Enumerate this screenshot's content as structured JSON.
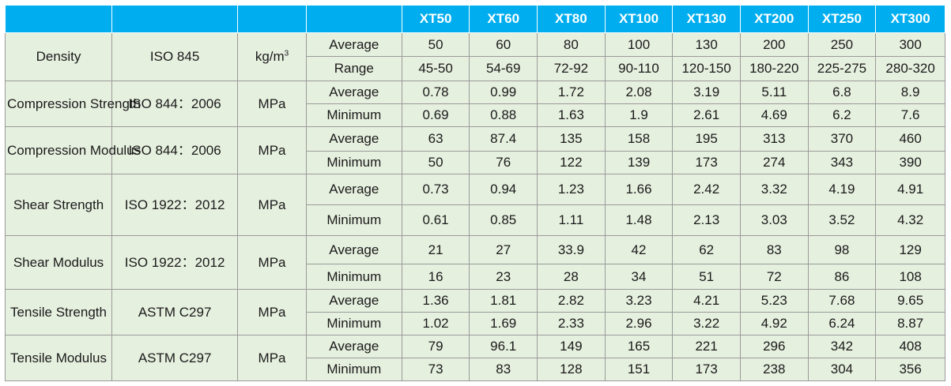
{
  "header": {
    "blank_cols": [
      "",
      "",
      "",
      ""
    ],
    "grades": [
      "XT50",
      "XT60",
      "XT80",
      "XT100",
      "XT130",
      "XT200",
      "XT250",
      "XT300"
    ]
  },
  "properties": [
    {
      "name": "Density",
      "standard": "ISO 845",
      "unit_base": "kg/m",
      "unit_sup": "3",
      "rows": [
        {
          "stat": "Average",
          "values": [
            "50",
            "60",
            "80",
            "100",
            "130",
            "200",
            "250",
            "300"
          ]
        },
        {
          "stat": "Range",
          "values": [
            "45-50",
            "54-69",
            "72-92",
            "90-110",
            "120-150",
            "180-220",
            "225-275",
            "280-320"
          ]
        }
      ]
    },
    {
      "name": "Compression Strength",
      "standard": "ISO 844：2006",
      "unit": "MPa",
      "rows": [
        {
          "stat": "Average",
          "values": [
            "0.78",
            "0.99",
            "1.72",
            "2.08",
            "3.19",
            "5.11",
            "6.8",
            "8.9"
          ]
        },
        {
          "stat": "Minimum",
          "values": [
            "0.69",
            "0.88",
            "1.63",
            "1.9",
            "2.61",
            "4.69",
            "6.2",
            "7.6"
          ]
        }
      ]
    },
    {
      "name": "Compression Modulus",
      "standard": "ISO 844：2006",
      "unit": "MPa",
      "rows": [
        {
          "stat": "Average",
          "values": [
            "63",
            "87.4",
            "135",
            "158",
            "195",
            "313",
            "370",
            "460"
          ]
        },
        {
          "stat": "Minimum",
          "values": [
            "50",
            "76",
            "122",
            "139",
            "173",
            "274",
            "343",
            "390"
          ]
        }
      ]
    },
    {
      "name": "Shear Strength",
      "standard": "ISO 1922：2012",
      "unit": "MPa",
      "rows": [
        {
          "stat": "Average",
          "values": [
            "0.73",
            "0.94",
            "1.23",
            "1.66",
            "2.42",
            "3.32",
            "4.19",
            "4.91"
          ]
        },
        {
          "stat": "Minimum",
          "values": [
            "0.61",
            "0.85",
            "1.11",
            "1.48",
            "2.13",
            "3.03",
            "3.52",
            "4.32"
          ]
        }
      ]
    },
    {
      "name": "Shear Modulus",
      "standard": "ISO 1922：2012",
      "unit": "MPa",
      "rows": [
        {
          "stat": "Average",
          "values": [
            "21",
            "27",
            "33.9",
            "42",
            "62",
            "83",
            "98",
            "129"
          ]
        },
        {
          "stat": "Minimum",
          "values": [
            "16",
            "23",
            "28",
            "34",
            "51",
            "72",
            "86",
            "108"
          ]
        }
      ]
    },
    {
      "name": "Tensile Strength",
      "standard": "ASTM C297",
      "unit": "MPa",
      "rows": [
        {
          "stat": "Average",
          "values": [
            "1.36",
            "1.81",
            "2.82",
            "3.23",
            "4.21",
            "5.23",
            "7.68",
            "9.65"
          ]
        },
        {
          "stat": "Minimum",
          "values": [
            "1.02",
            "1.69",
            "2.33",
            "2.96",
            "3.22",
            "4.92",
            "6.24",
            "8.87"
          ]
        }
      ]
    },
    {
      "name": "Tensile Modulus",
      "standard": "ASTM C297",
      "unit": "MPa",
      "rows": [
        {
          "stat": "Average",
          "values": [
            "79",
            "96.1",
            "149",
            "165",
            "221",
            "296",
            "342",
            "408"
          ]
        },
        {
          "stat": "Minimum",
          "values": [
            "73",
            "83",
            "128",
            "151",
            "173",
            "238",
            "304",
            "356"
          ]
        }
      ]
    }
  ]
}
